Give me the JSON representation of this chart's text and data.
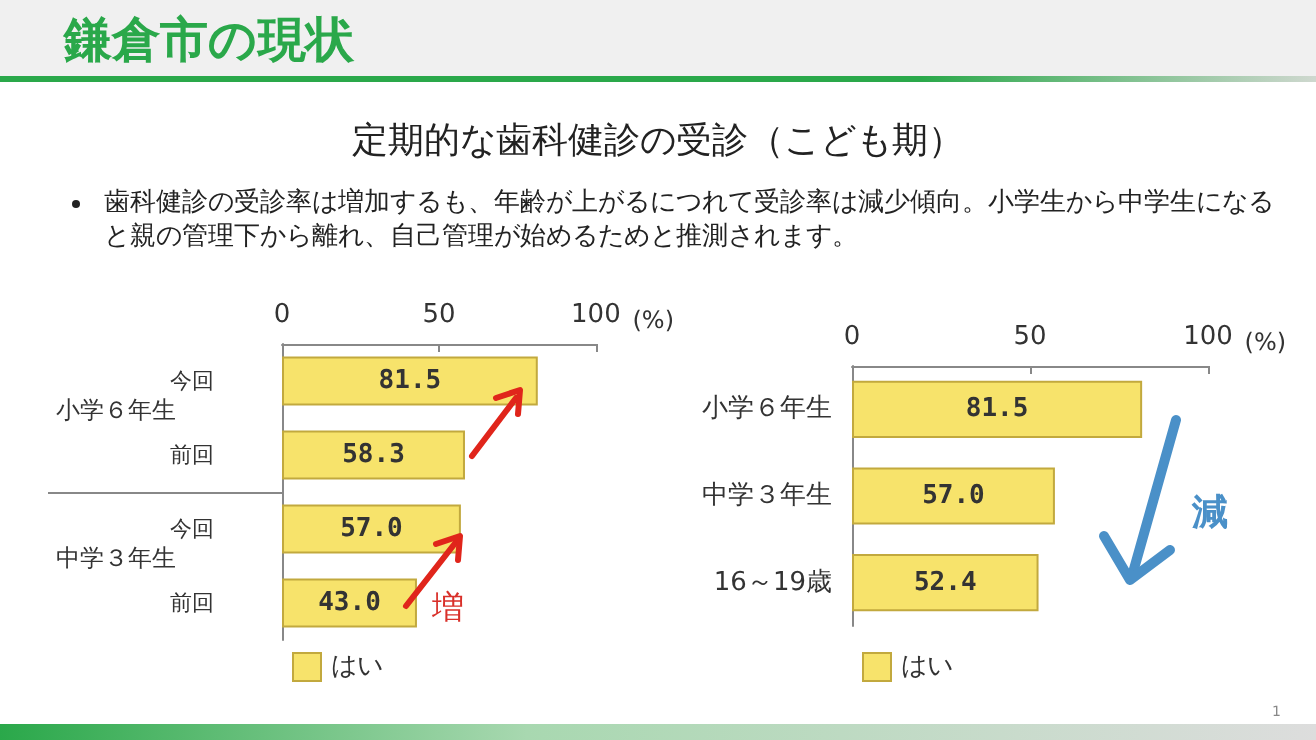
{
  "chart_data": [
    {
      "type": "bar",
      "orientation": "horizontal",
      "title": "定期的な歯科健診の受診（こども期）",
      "categories": [
        "今回",
        "前回",
        "今回",
        "前回"
      ],
      "series": [
        {
          "name": "はい",
          "color": "#f7e36b",
          "values": [
            81.5,
            58.3,
            57.0,
            43.0
          ],
          "value_labels": [
            "81.5",
            "58.3",
            "57.0",
            "43.0"
          ]
        }
      ],
      "xlim": [
        0,
        100
      ],
      "xticks": [
        0,
        50,
        100
      ],
      "xlabel": "(%)",
      "grid": false,
      "legend": "bottom",
      "annotations": [
        "鎌倉市の現状",
        "歯科健診の受診率は増加するも、年齢が上がるにつれて受診率は減少傾向。小学生から中学生になると親の管理下から離れ、自己管理が始めるためと推測されます。",
        "小学６年生",
        "中学３年生",
        "増",
        "1"
      ]
    },
    {
      "type": "bar",
      "orientation": "horizontal",
      "categories": [
        "小学６年生",
        "中学３年生",
        "16～19歳"
      ],
      "series": [
        {
          "name": "はい",
          "color": "#f7e36b",
          "values": [
            81.5,
            57.0,
            52.4
          ],
          "value_labels": [
            "81.5",
            "57.0",
            "52.4"
          ]
        }
      ],
      "xlim": [
        0,
        100
      ],
      "xticks": [
        0,
        50,
        100
      ],
      "xlabel": "(%)",
      "grid": false,
      "legend": "bottom",
      "annotations": [
        "減"
      ]
    }
  ]
}
